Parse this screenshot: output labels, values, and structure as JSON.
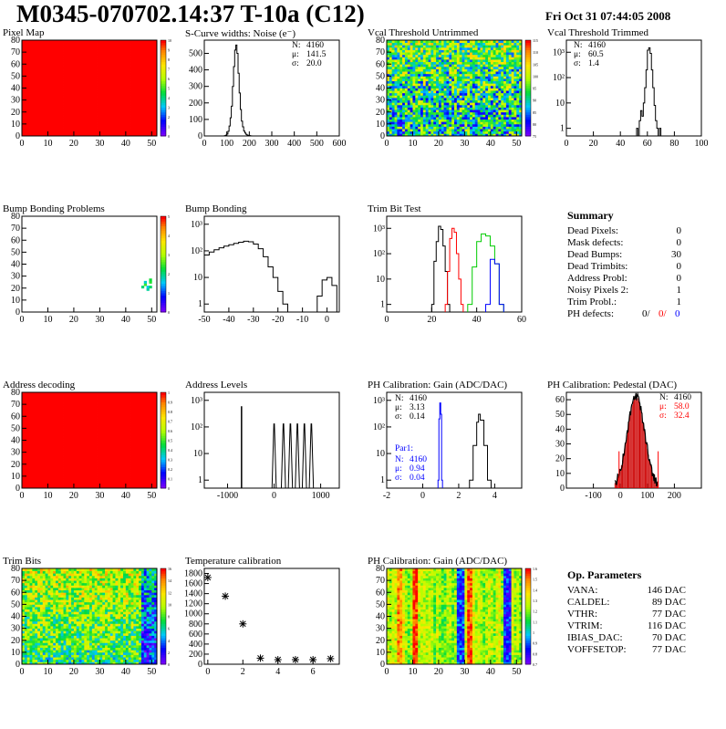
{
  "header": {
    "title": "M0345-070702.14:37 T-10a (C12)",
    "date": "Fri Oct 31 07:44:05 2008"
  },
  "colors": {
    "hist_line": "#000000",
    "red_series": "#ff0000",
    "green_series": "#00cc00",
    "blue_series": "#0000ff",
    "pedestal_fill": "#cc0000"
  },
  "chart_data": [
    {
      "id": "pixel_map",
      "type": "heatmap",
      "title": "Pixel Map",
      "xlim": [
        0,
        52
      ],
      "ylim": [
        0,
        80
      ],
      "xticks": [
        "0",
        "10",
        "20",
        "30",
        "40",
        "50"
      ],
      "yticks": [
        "0",
        "10",
        "20",
        "30",
        "40",
        "50",
        "60",
        "70",
        "80"
      ],
      "zlim": [
        0,
        10
      ],
      "zticks": [
        "0",
        "1",
        "2",
        "3",
        "4",
        "5",
        "6",
        "7",
        "8",
        "9",
        "10"
      ],
      "uniform_value": 10
    },
    {
      "id": "noise",
      "type": "histogram",
      "title": "S-Curve widths: Noise (e⁻)",
      "xlim": [
        0,
        600
      ],
      "ylim": [
        0,
        580
      ],
      "xticks": [
        "0",
        "100",
        "200",
        "300",
        "400",
        "500",
        "600"
      ],
      "yticks": [
        "0",
        "100",
        "200",
        "300",
        "400",
        "500"
      ],
      "stats": [
        {
          "label": "N:",
          "value": "4160"
        },
        {
          "label": "μ:",
          "value": "141.5"
        },
        {
          "label": "σ:",
          "value": "20.0"
        }
      ],
      "bins_x": [
        90,
        95,
        100,
        105,
        110,
        115,
        120,
        125,
        130,
        135,
        140,
        145,
        150,
        155,
        160,
        165,
        170,
        175,
        180,
        185,
        190,
        195,
        200,
        205,
        210
      ],
      "bins_y": [
        2,
        5,
        12,
        28,
        60,
        110,
        180,
        300,
        420,
        520,
        550,
        500,
        380,
        260,
        160,
        90,
        55,
        30,
        18,
        10,
        5,
        3,
        2,
        1,
        0
      ]
    },
    {
      "id": "vcal_untrimmed",
      "type": "heatmap",
      "title": "Vcal Threshold Untrimmed",
      "xlim": [
        0,
        52
      ],
      "ylim": [
        0,
        80
      ],
      "xticks": [
        "0",
        "10",
        "20",
        "30",
        "40",
        "50"
      ],
      "yticks": [
        "0",
        "10",
        "20",
        "30",
        "40",
        "50",
        "60",
        "70",
        "80"
      ],
      "zticks": [
        "75",
        "80",
        "85",
        "90",
        "95",
        "100",
        "105",
        "110",
        "115"
      ]
    },
    {
      "id": "vcal_trimmed",
      "type": "histogram",
      "title": "Vcal Threshold Trimmed",
      "log": true,
      "xlim": [
        0,
        100
      ],
      "ylim": [
        0.5,
        3000
      ],
      "xticks": [
        "0",
        "20",
        "40",
        "60",
        "80",
        "100"
      ],
      "yticks": [
        "1",
        "10",
        "10²",
        "10³"
      ],
      "stats": [
        {
          "label": "N:",
          "value": "4160"
        },
        {
          "label": "μ:",
          "value": "60.5"
        },
        {
          "label": "σ:",
          "value": "1.4"
        }
      ],
      "bins_x": [
        52,
        53,
        54,
        55,
        56,
        57,
        58,
        59,
        60,
        61,
        62,
        63,
        64,
        65,
        66,
        67,
        68,
        69
      ],
      "bins_y": [
        1,
        0,
        2,
        5,
        3,
        10,
        40,
        200,
        1200,
        1500,
        900,
        200,
        40,
        8,
        2,
        1,
        0,
        1
      ]
    },
    {
      "id": "bump_map",
      "type": "heatmap",
      "title": "Bump Bonding Problems",
      "xlim": [
        0,
        52
      ],
      "ylim": [
        0,
        80
      ],
      "xticks": [
        "0",
        "10",
        "20",
        "30",
        "40",
        "50"
      ],
      "yticks": [
        "0",
        "10",
        "20",
        "30",
        "40",
        "50",
        "60",
        "70",
        "80"
      ],
      "zlim": [
        0,
        5
      ],
      "zticks": [
        "0",
        "1",
        "2",
        "3",
        "4",
        "5"
      ]
    },
    {
      "id": "bump_bonding",
      "type": "histogram",
      "title": "Bump Bonding",
      "log": true,
      "xlim": [
        -50,
        5
      ],
      "ylim": [
        0.5,
        2000
      ],
      "xticks": [
        "-50",
        "-40",
        "-30",
        "-20",
        "-10",
        "0"
      ],
      "yticks": [
        "1",
        "10",
        "10²",
        "10³"
      ],
      "bins_x": [
        -50,
        -48,
        -46,
        -44,
        -42,
        -40,
        -38,
        -36,
        -34,
        -32,
        -30,
        -28,
        -26,
        -24,
        -22,
        -20,
        -18,
        -16,
        -4,
        -2,
        0,
        2
      ],
      "bins_y": [
        70,
        90,
        110,
        130,
        150,
        170,
        190,
        210,
        230,
        220,
        180,
        120,
        60,
        25,
        10,
        3,
        1,
        0,
        2,
        8,
        10,
        5
      ]
    },
    {
      "id": "trim_bits_test",
      "type": "histogram",
      "title": "Trim Bit Test",
      "log": true,
      "xlim": [
        0,
        60
      ],
      "ylim": [
        0.5,
        3000
      ],
      "xticks": [
        "0",
        "20",
        "40",
        "60"
      ],
      "yticks": [
        "1",
        "10",
        "10²",
        "10³"
      ],
      "series": [
        {
          "color": "black",
          "x": [
            20,
            21,
            22,
            23,
            24,
            25,
            26,
            27
          ],
          "y": [
            1,
            50,
            300,
            1200,
            900,
            200,
            20,
            1
          ]
        },
        {
          "color": "red",
          "x": [
            26,
            27,
            28,
            29,
            30,
            31,
            32,
            33
          ],
          "y": [
            1,
            20,
            400,
            1000,
            700,
            100,
            10,
            1
          ]
        },
        {
          "color": "green",
          "x": [
            36,
            38,
            40,
            42,
            44,
            46,
            48,
            50
          ],
          "y": [
            1,
            30,
            300,
            600,
            500,
            200,
            40,
            1
          ]
        },
        {
          "color": "blue",
          "x": [
            44,
            46,
            48,
            50
          ],
          "y": [
            1,
            60,
            40,
            1
          ]
        }
      ]
    },
    {
      "id": "summary",
      "type": "table",
      "title": "Summary",
      "rows": [
        {
          "label": "Dead Pixels:",
          "value": "0"
        },
        {
          "label": "Mask defects:",
          "value": "0"
        },
        {
          "label": "Dead Bumps:",
          "value": "30"
        },
        {
          "label": "Dead Trimbits:",
          "value": "0"
        },
        {
          "label": "Address Probl:",
          "value": "0"
        },
        {
          "label": "Noisy Pixels 2:",
          "value": "1"
        },
        {
          "label": "Trim Probl.:",
          "value": "1"
        }
      ],
      "ph_defects": {
        "label": "PH defects:",
        "v1": "0/",
        "v2": "0/",
        "v3": "0"
      }
    },
    {
      "id": "address_decoding",
      "type": "heatmap",
      "title": "Address decoding",
      "xlim": [
        0,
        52
      ],
      "ylim": [
        0,
        80
      ],
      "xticks": [
        "0",
        "10",
        "20",
        "30",
        "40",
        "50"
      ],
      "yticks": [
        "0",
        "10",
        "20",
        "30",
        "40",
        "50",
        "60",
        "70",
        "80"
      ],
      "zlim": [
        0,
        1
      ],
      "zticks": [
        "0",
        "0.1",
        "0.2",
        "0.3",
        "0.4",
        "0.5",
        "0.6",
        "0.7",
        "0.8",
        "0.9",
        "1"
      ],
      "uniform_value": 1
    },
    {
      "id": "address_levels",
      "type": "histogram",
      "title": "Address Levels",
      "log": true,
      "xlim": [
        -1500,
        1400
      ],
      "ylim": [
        0.5,
        2000
      ],
      "xticks": [
        "-1000",
        "0",
        "1000"
      ],
      "yticks": [
        "1",
        "10",
        "10²",
        "10³"
      ],
      "spikes": [
        -700
      ],
      "peaks": [
        0,
        200,
        350,
        500,
        650,
        800
      ],
      "peak_height": 130,
      "spike_height": 600
    },
    {
      "id": "ph_gain",
      "type": "histogram",
      "title": "PH Calibration: Gain (ADC/DAC)",
      "log": true,
      "xlim": [
        -2,
        5.5
      ],
      "ylim": [
        0.5,
        2000
      ],
      "xticks": [
        "-2",
        "0",
        "2",
        "4"
      ],
      "yticks": [
        "1",
        "10",
        "10²",
        "10³"
      ],
      "stats": [
        {
          "label": "N:",
          "value": "4160"
        },
        {
          "label": "μ:",
          "value": "3.13"
        },
        {
          "label": "σ:",
          "value": "0.14"
        }
      ],
      "par1": {
        "title": "Par1:",
        "stats": [
          {
            "label": "N:",
            "value": "4160"
          },
          {
            "label": "μ:",
            "value": "0.94"
          },
          {
            "label": "σ:",
            "value": "0.04"
          }
        ]
      },
      "gain": {
        "x": [
          2.6,
          2.8,
          3.0,
          3.1,
          3.2,
          3.4,
          3.6
        ],
        "y": [
          1,
          20,
          150,
          300,
          180,
          20,
          1
        ]
      },
      "par1_hist": {
        "x": [
          0.85,
          0.9,
          0.95,
          1.0,
          1.05
        ],
        "y": [
          1,
          200,
          800,
          300,
          1
        ]
      }
    },
    {
      "id": "ph_pedestal",
      "type": "histogram",
      "title": "PH Calibration: Pedestal (DAC)",
      "xlim": [
        -200,
        300
      ],
      "ylim": [
        0,
        65
      ],
      "xticks": [
        "-100",
        "0",
        "100",
        "200"
      ],
      "yticks": [
        "0",
        "10",
        "20",
        "30",
        "40",
        "50",
        "60"
      ],
      "stats": [
        {
          "label": "N:",
          "value": "4160"
        },
        {
          "label": "μ:",
          "value": "58.0"
        },
        {
          "label": "σ:",
          "value": "32.4"
        }
      ],
      "mu": 58.0,
      "sigma": 32.4,
      "peak": 62
    },
    {
      "id": "trim_bits",
      "type": "heatmap",
      "title": "Trim Bits",
      "xlim": [
        0,
        52
      ],
      "ylim": [
        0,
        80
      ],
      "xticks": [
        "0",
        "10",
        "20",
        "30",
        "40",
        "50"
      ],
      "yticks": [
        "0",
        "10",
        "20",
        "30",
        "40",
        "50",
        "60",
        "70",
        "80"
      ],
      "zticks": [
        "0",
        "2",
        "4",
        "6",
        "8",
        "10",
        "12",
        "14",
        "16"
      ]
    },
    {
      "id": "temperature",
      "type": "scatter",
      "title": "Temperature calibration",
      "xlim": [
        -0.2,
        7.5
      ],
      "ylim": [
        0,
        1900
      ],
      "xticks": [
        "0",
        "2",
        "4",
        "6"
      ],
      "yticks": [
        "0",
        "200",
        "400",
        "600",
        "800",
        "1000",
        "1200",
        "1400",
        "1600",
        "1800"
      ],
      "x": [
        0,
        1,
        2,
        3,
        4,
        5,
        6,
        7
      ],
      "y": [
        1720,
        1350,
        800,
        120,
        90,
        90,
        90,
        110
      ]
    },
    {
      "id": "ph_gain_map",
      "type": "heatmap",
      "title": "PH Calibration: Gain (ADC/DAC)",
      "xlim": [
        0,
        52
      ],
      "ylim": [
        0,
        80
      ],
      "xticks": [
        "0",
        "10",
        "20",
        "30",
        "40",
        "50"
      ],
      "yticks": [
        "0",
        "10",
        "20",
        "30",
        "40",
        "50",
        "60",
        "70",
        "80"
      ],
      "zticks": [
        "0.7",
        "0.8",
        "0.9",
        "1",
        "1.1",
        "1.2",
        "1.3",
        "1.4",
        "1.5",
        "1.6"
      ]
    },
    {
      "id": "op_params",
      "type": "table",
      "title": "Op. Parameters",
      "rows": [
        {
          "label": "VANA:",
          "value": "146 DAC"
        },
        {
          "label": "CALDEL:",
          "value": "89 DAC"
        },
        {
          "label": "VTHR:",
          "value": "77 DAC"
        },
        {
          "label": "VTRIM:",
          "value": "116 DAC"
        },
        {
          "label": "IBIAS_DAC:",
          "value": "70 DAC"
        },
        {
          "label": "VOFFSETOP:",
          "value": "77 DAC"
        }
      ]
    }
  ]
}
